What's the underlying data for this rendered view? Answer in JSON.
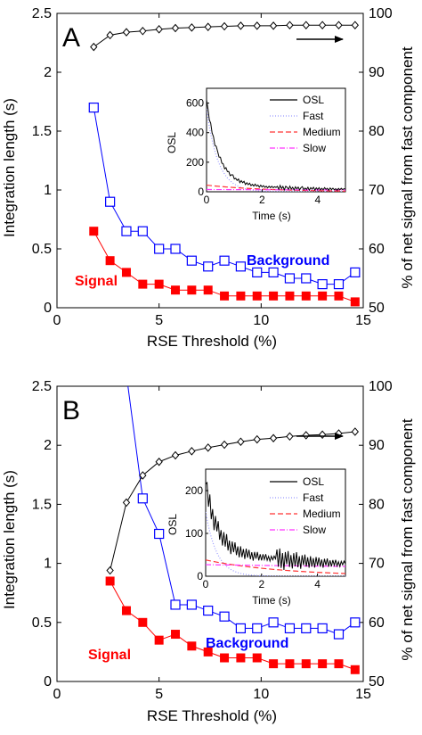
{
  "chart_data": [
    {
      "type": "line",
      "panel_label": "A",
      "xlabel": "RSE Threshold (%)",
      "ylabel": "Integration length (s)",
      "y2label": "% of net signal from fast component",
      "xlim": [
        0,
        15
      ],
      "ylim": [
        0,
        2.5
      ],
      "y2lim": [
        50,
        100
      ],
      "xticks": [
        0,
        5,
        10,
        15
      ],
      "yticks": [
        0,
        0.5,
        1,
        1.5,
        2,
        2.5
      ],
      "y2ticks": [
        50,
        60,
        70,
        80,
        90,
        100
      ],
      "grid": false,
      "series": [
        {
          "name": "Signal",
          "color": "#ff0000",
          "marker": "filled-square",
          "axis": "left",
          "x": [
            1.8,
            2.6,
            3.4,
            4.2,
            5.0,
            5.8,
            6.6,
            7.4,
            8.2,
            9.0,
            9.8,
            10.6,
            11.4,
            12.2,
            13.0,
            13.8,
            14.6
          ],
          "y": [
            0.65,
            0.4,
            0.3,
            0.2,
            0.2,
            0.15,
            0.15,
            0.15,
            0.1,
            0.1,
            0.1,
            0.1,
            0.1,
            0.1,
            0.1,
            0.1,
            0.05
          ]
        },
        {
          "name": "Background",
          "color": "#0000ff",
          "marker": "open-square",
          "axis": "left",
          "x": [
            1.8,
            2.6,
            3.4,
            4.2,
            5.0,
            5.8,
            6.6,
            7.4,
            8.2,
            9.0,
            9.8,
            10.6,
            11.4,
            12.2,
            13.0,
            13.8,
            14.6
          ],
          "y": [
            1.7,
            0.9,
            0.65,
            0.65,
            0.5,
            0.5,
            0.4,
            0.35,
            0.4,
            0.35,
            0.3,
            0.3,
            0.25,
            0.25,
            0.2,
            0.2,
            0.3
          ]
        },
        {
          "color": "#000000",
          "marker": "open-diamond",
          "axis": "right",
          "x": [
            1.8,
            2.6,
            3.4,
            4.2,
            5.0,
            5.8,
            6.6,
            7.4,
            8.2,
            9.0,
            9.8,
            10.6,
            11.4,
            12.2,
            13.0,
            13.8,
            14.6
          ],
          "y": [
            94.3,
            96.3,
            96.8,
            97.0,
            97.3,
            97.5,
            97.6,
            97.7,
            97.8,
            97.9,
            97.9,
            97.9,
            98.0,
            98.0,
            98.0,
            98.0,
            98.0
          ]
        }
      ],
      "annotations": [
        {
          "text": "Signal",
          "color": "#ff0000"
        },
        {
          "text": "Background",
          "color": "#0000ff"
        }
      ],
      "arrow": {
        "direction": "right",
        "meaning": "right axis series"
      },
      "inset": {
        "xlabel": "Time (s)",
        "ylabel": "OSL",
        "xlim": [
          0,
          5
        ],
        "ylim": [
          0,
          700
        ],
        "xticks": [
          0,
          2,
          4
        ],
        "yticks": [
          0,
          200,
          400,
          600
        ],
        "legend": [
          "OSL",
          "Fast",
          "Medium",
          "Slow"
        ],
        "legend_placement": "top-right",
        "osl": {
          "start": 620,
          "fast_amp": 560,
          "fast_tau": 0.42,
          "med_amp": 45,
          "med_tau": 2.2,
          "slow_amp": 15,
          "slow_tau": 25,
          "noise": [
            0,
            8,
            -12,
            15,
            -6,
            9,
            -14,
            11,
            4,
            -9,
            13,
            -7,
            6,
            -12,
            10,
            -4,
            8,
            -10,
            5,
            12,
            -8,
            3,
            -6,
            9,
            -11,
            7,
            -3,
            10,
            -9,
            6,
            -5,
            8,
            -7,
            4,
            -6,
            9,
            -3,
            5,
            -8,
            7,
            -4,
            6,
            -5,
            3,
            -7,
            5,
            -4,
            6,
            -3,
            4
          ]
        }
      }
    },
    {
      "type": "line",
      "panel_label": "B",
      "xlabel": "RSE Threshold (%)",
      "ylabel": "Integration length (s)",
      "y2label": "% of net signal from fast component",
      "xlim": [
        0,
        15
      ],
      "ylim": [
        0,
        2.5
      ],
      "y2lim": [
        50,
        100
      ],
      "xticks": [
        0,
        5,
        10,
        15
      ],
      "yticks": [
        0,
        0.5,
        1,
        1.5,
        2,
        2.5
      ],
      "y2ticks": [
        50,
        60,
        70,
        80,
        90,
        100
      ],
      "grid": false,
      "series": [
        {
          "name": "Signal",
          "color": "#ff0000",
          "marker": "filled-square",
          "axis": "left",
          "x": [
            2.6,
            3.4,
            4.2,
            5.0,
            5.8,
            6.6,
            7.4,
            8.2,
            9.0,
            9.8,
            10.6,
            11.4,
            12.2,
            13.0,
            13.8,
            14.6
          ],
          "y": [
            0.85,
            0.6,
            0.5,
            0.35,
            0.4,
            0.3,
            0.25,
            0.2,
            0.2,
            0.2,
            0.15,
            0.15,
            0.15,
            0.15,
            0.15,
            0.1
          ]
        },
        {
          "name": "Background",
          "color": "#0000ff",
          "marker": "open-square",
          "axis": "left",
          "x": [
            3.4,
            4.2,
            5.0,
            5.8,
            6.6,
            7.4,
            8.2,
            9.0,
            9.8,
            10.6,
            11.4,
            12.2,
            13.0,
            13.8,
            14.6
          ],
          "y": [
            2.6,
            1.55,
            1.25,
            0.65,
            0.65,
            0.6,
            0.55,
            0.45,
            0.45,
            0.5,
            0.45,
            0.45,
            0.45,
            0.4,
            0.5
          ]
        },
        {
          "color": "#000000",
          "marker": "open-diamond",
          "axis": "right",
          "x": [
            2.6,
            3.4,
            4.2,
            5.0,
            5.8,
            6.6,
            7.4,
            8.2,
            9.0,
            9.8,
            10.6,
            11.4,
            12.2,
            13.0,
            13.8,
            14.6
          ],
          "y": [
            68.8,
            80.3,
            84.9,
            87.2,
            88.3,
            89.0,
            89.6,
            90.1,
            90.6,
            91.0,
            91.2,
            91.5,
            91.7,
            91.8,
            92.0,
            92.3
          ]
        }
      ],
      "annotations": [
        {
          "text": "Signal",
          "color": "#ff0000"
        },
        {
          "text": "Background",
          "color": "#0000ff"
        }
      ],
      "arrow": {
        "direction": "right",
        "meaning": "right axis series"
      },
      "inset": {
        "xlabel": "Time (s)",
        "ylabel": "OSL",
        "xlim": [
          0,
          5
        ],
        "ylim": [
          0,
          250
        ],
        "xticks": [
          0,
          2,
          4
        ],
        "yticks": [
          0,
          100,
          200
        ],
        "legend": [
          "OSL",
          "Fast",
          "Medium",
          "Slow"
        ],
        "legend_placement": "top-right",
        "osl": {
          "start": 215,
          "fast_amp": 150,
          "fast_tau": 0.4,
          "med_amp": 38,
          "med_tau": 2.8,
          "slow_amp": 27,
          "slow_tau": 30,
          "noise": [
            0,
            22,
            -18,
            25,
            -20,
            15,
            -24,
            18,
            -10,
            21,
            -16,
            12,
            -19,
            17,
            -13,
            20,
            -15,
            11,
            -18,
            14,
            -9,
            16,
            -12,
            10,
            -14,
            13,
            -11,
            9,
            -13,
            12,
            -8,
            11,
            -10,
            7,
            -12,
            9,
            -6,
            10,
            -9,
            6,
            -8,
            7,
            -5,
            8,
            -6,
            4,
            -7,
            5,
            -3,
            6
          ]
        }
      }
    }
  ]
}
